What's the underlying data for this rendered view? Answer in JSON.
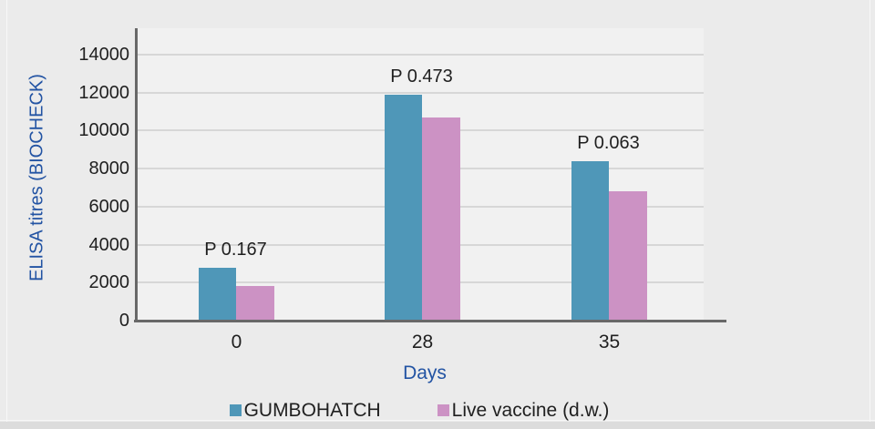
{
  "frame": {
    "page_background": "#ebebeb",
    "plot_background": "#f1f1f1",
    "border_line_color": "#f8f8f8",
    "bottom_strip_color": "#dcdcdc"
  },
  "chart_data": {
    "type": "bar",
    "title": "",
    "categories": [
      "0",
      "28",
      "35"
    ],
    "series": [
      {
        "name": "GUMBOHATCH",
        "color": "#4f97b8",
        "values": [
          2800,
          11900,
          8400
        ]
      },
      {
        "name": "Live vaccine (d.w.)",
        "color": "#cc92c4",
        "values": [
          1800,
          10700,
          6800
        ]
      }
    ],
    "annotations": [
      {
        "label": "P 0.167",
        "category": "0"
      },
      {
        "label": "P 0.473",
        "category": "28"
      },
      {
        "label": "P 0.063",
        "category": "35"
      }
    ],
    "xlabel": "Days",
    "ylabel": "ELISA titres (BIOCHECK)",
    "ylim": [
      0,
      14000
    ],
    "yticks": [
      0,
      2000,
      4000,
      6000,
      8000,
      10000,
      12000,
      14000
    ],
    "grid": true,
    "legend_position": "bottom",
    "colors": {
      "axis_line": "#686868",
      "grid_line": "#d7d7d7",
      "tick_label": "#1f1f1f",
      "annotation_label": "#1f1f1f",
      "axis_title": "#2253a3",
      "legend_label": "#1f1f1f"
    }
  }
}
